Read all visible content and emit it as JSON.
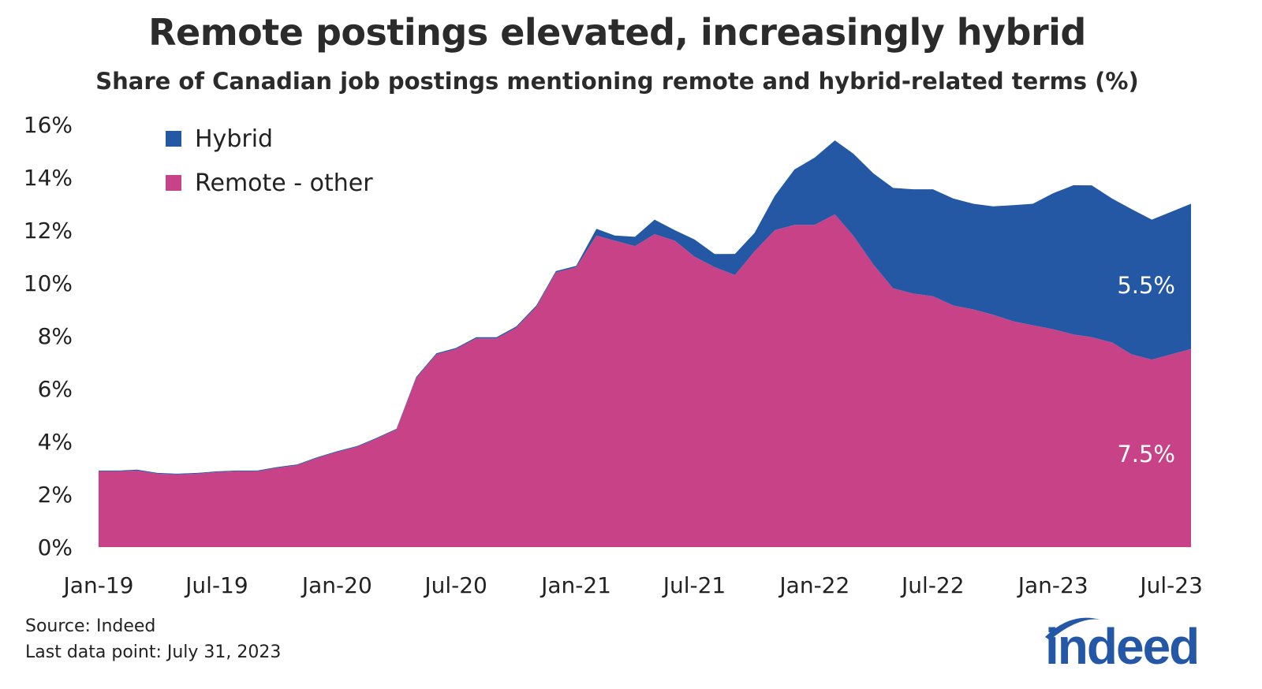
{
  "chart_data": {
    "type": "area",
    "stacked": true,
    "title": "Remote postings elevated, increasingly hybrid",
    "subtitle": "Share of Canadian job postings mentioning remote and hybrid-related terms (%)",
    "xlabel": "",
    "ylabel": "",
    "ylim": [
      0,
      16
    ],
    "y_ticks": [
      "0%",
      "2%",
      "4%",
      "6%",
      "8%",
      "10%",
      "12%",
      "14%",
      "16%"
    ],
    "x_ticks": [
      "Jan-19",
      "Jul-19",
      "Jan-20",
      "Jul-20",
      "Jan-21",
      "Jul-21",
      "Jan-22",
      "Jul-22",
      "Jan-23",
      "Jul-23"
    ],
    "grid": false,
    "legend_placement": "top-left",
    "x": [
      "2019-01-01",
      "2019-02-01",
      "2019-03-01",
      "2019-04-01",
      "2019-05-01",
      "2019-06-01",
      "2019-07-01",
      "2019-08-01",
      "2019-09-01",
      "2019-10-01",
      "2019-11-01",
      "2019-12-01",
      "2020-01-01",
      "2020-02-01",
      "2020-03-01",
      "2020-04-01",
      "2020-05-01",
      "2020-06-01",
      "2020-07-01",
      "2020-08-01",
      "2020-09-01",
      "2020-10-01",
      "2020-11-01",
      "2020-12-01",
      "2021-01-01",
      "2021-02-01",
      "2021-03-01",
      "2021-04-01",
      "2021-05-01",
      "2021-06-01",
      "2021-07-01",
      "2021-08-01",
      "2021-09-01",
      "2021-10-01",
      "2021-11-01",
      "2021-12-01",
      "2022-01-01",
      "2022-02-01",
      "2022-03-01",
      "2022-04-01",
      "2022-05-01",
      "2022-06-01",
      "2022-07-01",
      "2022-08-01",
      "2022-09-01",
      "2022-10-01",
      "2022-11-01",
      "2022-12-01",
      "2023-01-01",
      "2023-02-01",
      "2023-03-01",
      "2023-04-01",
      "2023-05-01",
      "2023-06-01",
      "2023-07-31"
    ],
    "series": [
      {
        "name": "Remote - other",
        "color": "#c74287",
        "values": [
          2.87,
          2.87,
          2.9,
          2.78,
          2.75,
          2.78,
          2.84,
          2.87,
          2.87,
          3.0,
          3.1,
          3.37,
          3.6,
          3.8,
          4.1,
          4.45,
          6.4,
          7.3,
          7.5,
          7.9,
          7.9,
          8.3,
          9.1,
          10.4,
          10.6,
          11.8,
          11.6,
          11.4,
          11.85,
          11.6,
          11.0,
          10.6,
          10.3,
          11.2,
          12.0,
          12.2,
          12.2,
          12.6,
          11.8,
          10.7,
          9.8,
          9.6,
          9.5,
          9.15,
          9.0,
          8.8,
          8.55,
          8.4,
          8.25,
          8.05,
          7.95,
          7.75,
          7.3,
          7.1,
          7.5
        ]
      },
      {
        "name": "Hybrid",
        "color": "#2457a4",
        "values": [
          0.03,
          0.03,
          0.03,
          0.03,
          0.03,
          0.03,
          0.03,
          0.03,
          0.03,
          0.03,
          0.03,
          0.03,
          0.03,
          0.03,
          0.03,
          0.03,
          0.04,
          0.04,
          0.04,
          0.05,
          0.05,
          0.05,
          0.05,
          0.05,
          0.05,
          0.25,
          0.2,
          0.35,
          0.55,
          0.4,
          0.65,
          0.5,
          0.8,
          0.7,
          1.3,
          2.1,
          2.55,
          2.8,
          3.1,
          3.45,
          3.8,
          3.95,
          4.05,
          4.05,
          4.0,
          4.1,
          4.4,
          4.6,
          5.15,
          5.65,
          5.75,
          5.45,
          5.5,
          5.3,
          5.5
        ]
      }
    ],
    "annotations": [
      {
        "text": "5.5%",
        "series": "Hybrid"
      },
      {
        "text": "7.5%",
        "series": "Remote - other"
      }
    ]
  },
  "legend": {
    "items": [
      {
        "label": "Hybrid",
        "color": "#2457a4"
      },
      {
        "label": "Remote - other",
        "color": "#c74287"
      }
    ]
  },
  "footer": {
    "source": "Source: Indeed",
    "last_point": "Last data point: July 31, 2023",
    "logo_text": "indeed"
  }
}
